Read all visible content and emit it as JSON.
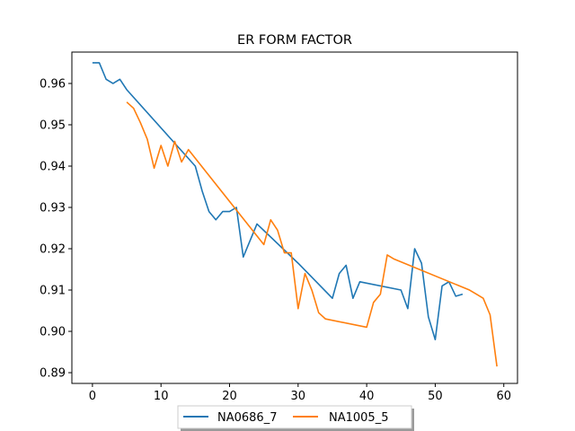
{
  "chart_data": {
    "type": "line",
    "title": "ER FORM FACTOR",
    "xlabel": "",
    "ylabel": "",
    "xlim": [
      -3,
      62
    ],
    "ylim": [
      0.8874,
      0.9676
    ],
    "xticks": [
      0,
      10,
      20,
      30,
      40,
      50,
      60
    ],
    "xtick_labels": [
      "0",
      "10",
      "20",
      "30",
      "40",
      "50",
      "60"
    ],
    "yticks": [
      0.89,
      0.9,
      0.91,
      0.92,
      0.93,
      0.94,
      0.95,
      0.96
    ],
    "ytick_labels": [
      "0.89",
      "0.90",
      "0.91",
      "0.92",
      "0.93",
      "0.94",
      "0.95",
      "0.96"
    ],
    "grid": false,
    "legend_position": "bottom-center",
    "series": [
      {
        "name": "NA0686_7",
        "color": "#1f77b4",
        "x": [
          0,
          1,
          2,
          3,
          4,
          5,
          15,
          16,
          17,
          18,
          19,
          20,
          21,
          22,
          24,
          30,
          35,
          36,
          37,
          38,
          39,
          45,
          46,
          47,
          48,
          49,
          50,
          51,
          52,
          53,
          54
        ],
        "y": [
          0.965,
          0.965,
          0.961,
          0.96,
          0.961,
          0.9585,
          0.94,
          0.934,
          0.929,
          0.927,
          0.929,
          0.929,
          0.93,
          0.918,
          0.926,
          0.9165,
          0.908,
          0.914,
          0.916,
          0.908,
          0.912,
          0.91,
          0.9055,
          0.92,
          0.9165,
          0.9035,
          0.898,
          0.911,
          0.912,
          0.9085,
          0.909
        ]
      },
      {
        "name": "NA1005_5",
        "color": "#ff7f0e",
        "x": [
          5,
          6,
          7,
          8,
          9,
          10,
          11,
          12,
          13,
          14,
          25,
          26,
          27,
          28,
          29,
          30,
          31,
          32,
          33,
          34,
          40,
          41,
          42,
          43,
          44,
          55,
          56,
          57,
          58,
          59
        ],
        "y": [
          0.9555,
          0.954,
          0.9505,
          0.9465,
          0.9395,
          0.945,
          0.94,
          0.946,
          0.941,
          0.944,
          0.921,
          0.927,
          0.9245,
          0.919,
          0.919,
          0.9055,
          0.914,
          0.91,
          0.9045,
          0.903,
          0.901,
          0.907,
          0.909,
          0.9185,
          0.9175,
          0.91,
          0.909,
          0.908,
          0.904,
          0.8915
        ]
      }
    ]
  }
}
